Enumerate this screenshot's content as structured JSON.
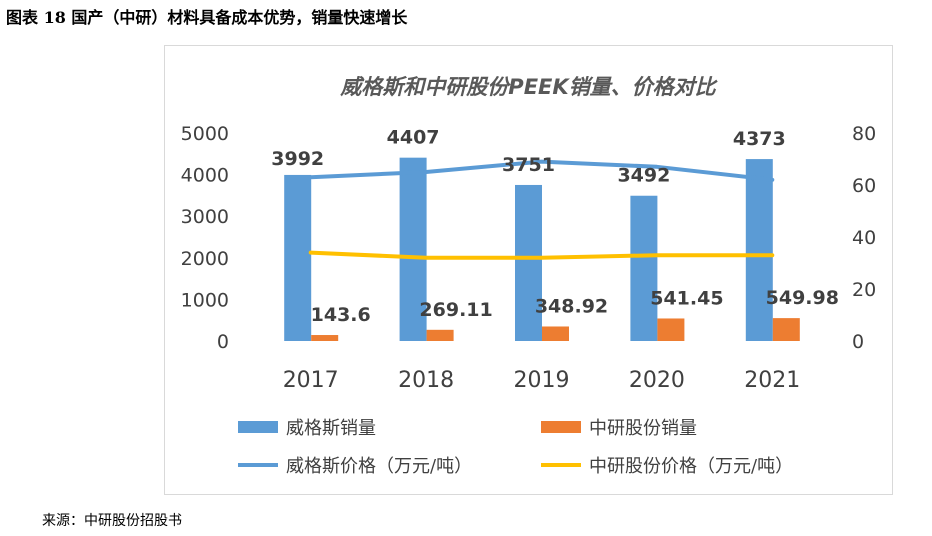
{
  "figure": {
    "title": "图表 18 国产（中研）材料具备成本优势，销量快速增长",
    "source": "来源：中研股份招股书"
  },
  "chart_data": {
    "type": "bar",
    "title": "威格斯和中研股份PEEK销量、价格对比",
    "categories": [
      "2017",
      "2018",
      "2019",
      "2020",
      "2021"
    ],
    "ylim": [
      0,
      5000
    ],
    "yticks": [
      "0",
      "1000",
      "2000",
      "3000",
      "4000",
      "5000"
    ],
    "y2lim": [
      0,
      80
    ],
    "y2ticks": [
      "0",
      "20",
      "40",
      "60",
      "80"
    ],
    "series": [
      {
        "name": "威格斯销量",
        "kind": "bar",
        "axis": "left",
        "color": "#5B9BD5",
        "values": [
          3992,
          4407,
          3751,
          3492,
          4373
        ],
        "labels": [
          "3992",
          "4407",
          "3751",
          "3492",
          "4373"
        ]
      },
      {
        "name": "中研股份销量",
        "kind": "bar",
        "axis": "left",
        "color": "#ED7D31",
        "values": [
          143.6,
          269.11,
          348.92,
          541.45,
          549.98
        ],
        "labels": [
          "143.6",
          "269.11",
          "348.92",
          "541.45",
          "549.98"
        ]
      },
      {
        "name": "威格斯价格（万元/吨）",
        "kind": "line",
        "axis": "right",
        "color": "#5B9BD5",
        "values": [
          63,
          65,
          69,
          67,
          62
        ]
      },
      {
        "name": "中研股份价格（万元/吨）",
        "kind": "line",
        "axis": "right",
        "color": "#FFC000",
        "values": [
          34,
          32,
          32,
          33,
          33
        ]
      }
    ],
    "legend_position": "bottom"
  }
}
